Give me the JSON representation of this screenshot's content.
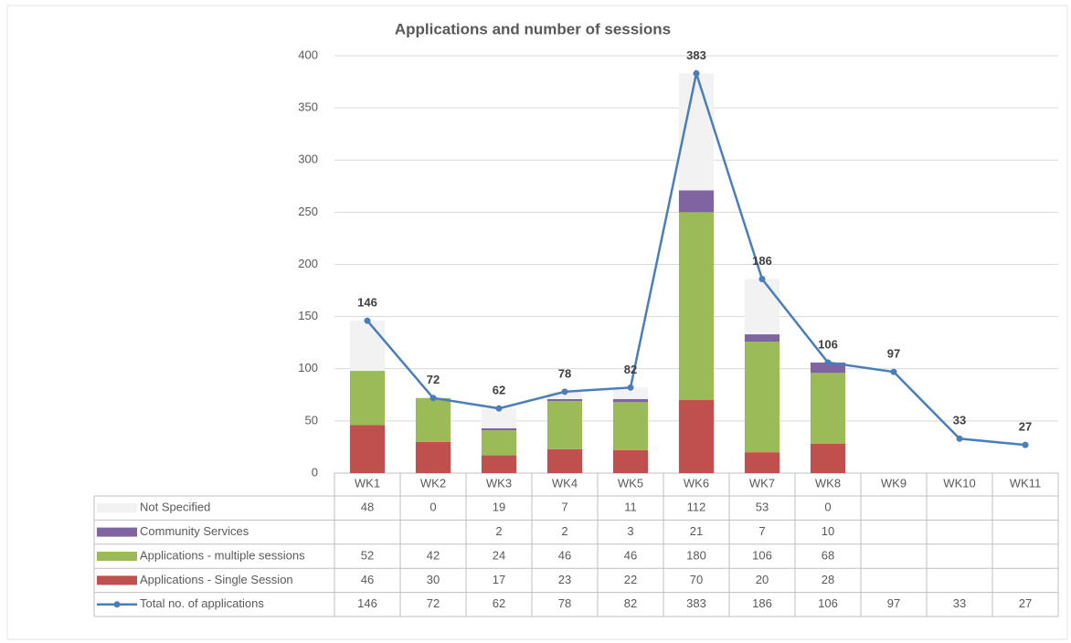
{
  "chart_data": {
    "type": "bar",
    "title": "Applications and number of sessions",
    "categories": [
      "WK1",
      "WK2",
      "WK3",
      "WK4",
      "WK5",
      "WK6",
      "WK7",
      "WK8",
      "WK9",
      "WK10",
      "WK11"
    ],
    "series": [
      {
        "name": "Not Specified",
        "type": "bar",
        "color": "#f2f2f2",
        "values": [
          48,
          0,
          19,
          7,
          11,
          112,
          53,
          0,
          null,
          null,
          null
        ]
      },
      {
        "name": "Community Services",
        "type": "bar",
        "color": "#8064a2",
        "values": [
          null,
          null,
          2,
          2,
          3,
          21,
          7,
          10,
          null,
          null,
          null
        ]
      },
      {
        "name": "Applications - multiple sessions",
        "type": "bar",
        "color": "#9bbb59",
        "values": [
          52,
          42,
          24,
          46,
          46,
          180,
          106,
          68,
          null,
          null,
          null
        ]
      },
      {
        "name": "Applications - Single Session",
        "type": "bar",
        "color": "#c0504d",
        "values": [
          46,
          30,
          17,
          23,
          22,
          70,
          20,
          28,
          null,
          null,
          null
        ]
      },
      {
        "name": "Total  no. of applications",
        "type": "line",
        "color": "#4a7ebb",
        "values": [
          146,
          72,
          62,
          78,
          82,
          383,
          186,
          106,
          97,
          33,
          27
        ]
      }
    ],
    "ylim": [
      0,
      400
    ],
    "yticks": [
      0,
      50,
      100,
      150,
      200,
      250,
      300,
      350,
      400
    ],
    "grid": true,
    "stacked": true,
    "data_table": true
  }
}
